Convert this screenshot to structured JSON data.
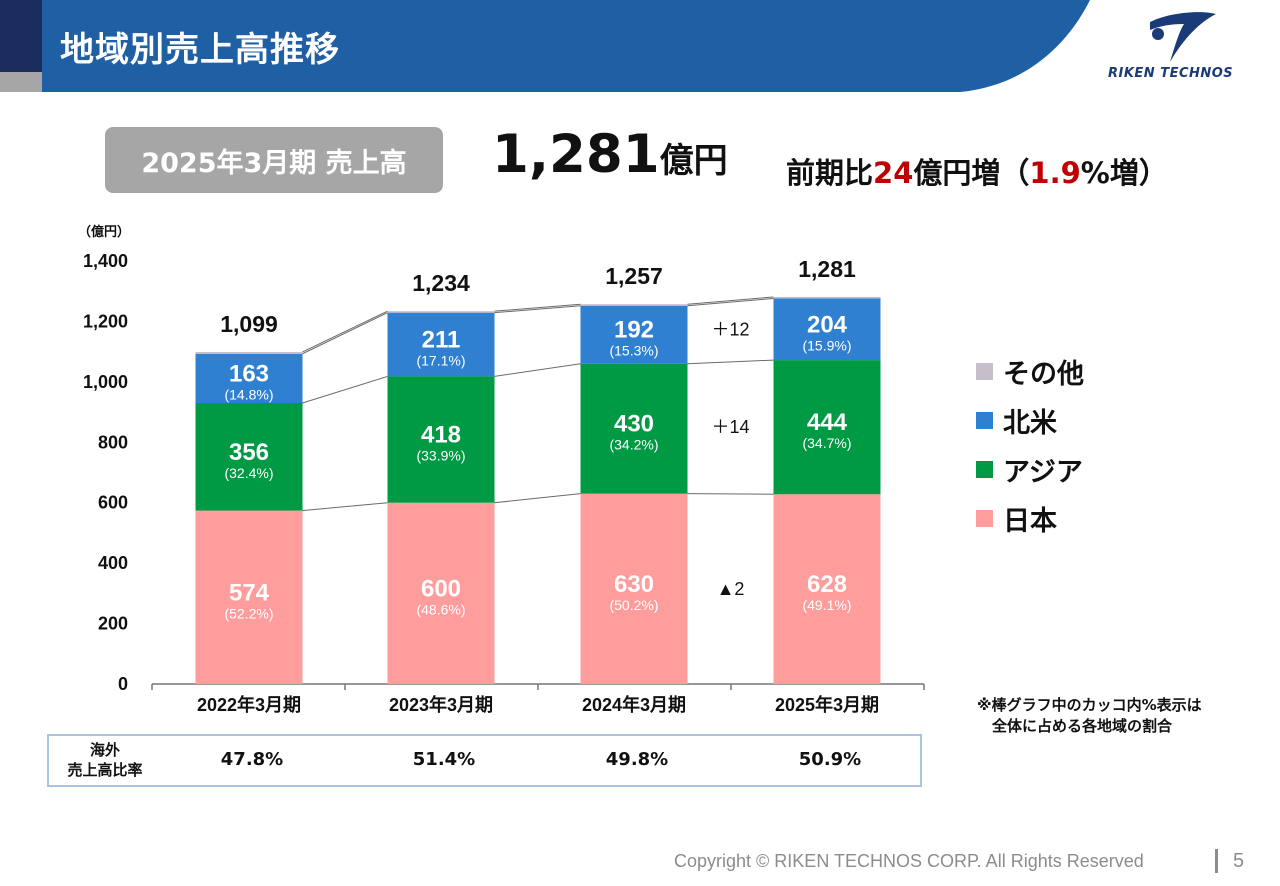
{
  "header": {
    "title": "地域別売上高推移"
  },
  "logo": {
    "text": "RIKEN TECHNOS"
  },
  "summary": {
    "period_label": "2025年3月期 売上高",
    "total_value": "1,281",
    "total_unit": "億円",
    "change_prefix": "前期比",
    "change_amount": "24",
    "change_mid": "億円増（",
    "change_pct": "1.9",
    "change_suffix": "%増）"
  },
  "chart_data": {
    "type": "bar",
    "stacked": true,
    "unit_label": "（億円）",
    "ylim": [
      0,
      1400
    ],
    "yticks": [
      "0",
      "200",
      "400",
      "600",
      "800",
      "1,000",
      "1,200",
      "1,400"
    ],
    "categories": [
      "2022年3月期",
      "2023年3月期",
      "2024年3月期",
      "2025年3月期"
    ],
    "totals": [
      1099,
      1234,
      1257,
      1281
    ],
    "total_labels": [
      "1,099",
      "1,234",
      "1,257",
      "1,281"
    ],
    "series": [
      {
        "name": "日本",
        "color": "#ff9c9c",
        "values": [
          574,
          600,
          630,
          628
        ],
        "pct_labels": [
          "(52.2%)",
          "(48.6%)",
          "(50.2%)",
          "(49.1%)"
        ]
      },
      {
        "name": "アジア",
        "color": "#009a44",
        "values": [
          356,
          418,
          430,
          444
        ],
        "pct_labels": [
          "(32.4%)",
          "(33.9%)",
          "(34.2%)",
          "(34.7%)"
        ]
      },
      {
        "name": "北米",
        "color": "#2f80d1",
        "values": [
          163,
          211,
          192,
          204
        ],
        "pct_labels": [
          "(14.8%)",
          "(17.1%)",
          "(15.3%)",
          "(15.9%)"
        ]
      },
      {
        "name": "その他",
        "color": "#c6bfcb",
        "values": [
          6,
          5,
          5,
          5
        ],
        "pct_labels": [
          "",
          "",
          "",
          ""
        ]
      }
    ],
    "deltas": [
      {
        "series": "北米",
        "label": "＋12"
      },
      {
        "series": "アジア",
        "label": "＋14"
      },
      {
        "series": "日本",
        "label": "▲2"
      }
    ],
    "legend": {
      "position": "right",
      "order": [
        "その他",
        "北米",
        "アジア",
        "日本"
      ]
    },
    "grid": false
  },
  "ratio_row": {
    "label_line1": "海外",
    "label_line2": "売上高比率",
    "values": [
      "47.8%",
      "51.4%",
      "49.8%",
      "50.9%"
    ]
  },
  "note": "※棒グラフ中のカッコ内%表示は\n　全体に占める各地域の割合",
  "footer": {
    "copyright": "Copyright © RIKEN TECHNOS CORP. All Rights Reserved",
    "page": "5"
  },
  "colors": {
    "header_blue": "#1f5fa3",
    "header_navy": "#1a2d5c",
    "accent_red": "#c00000"
  }
}
